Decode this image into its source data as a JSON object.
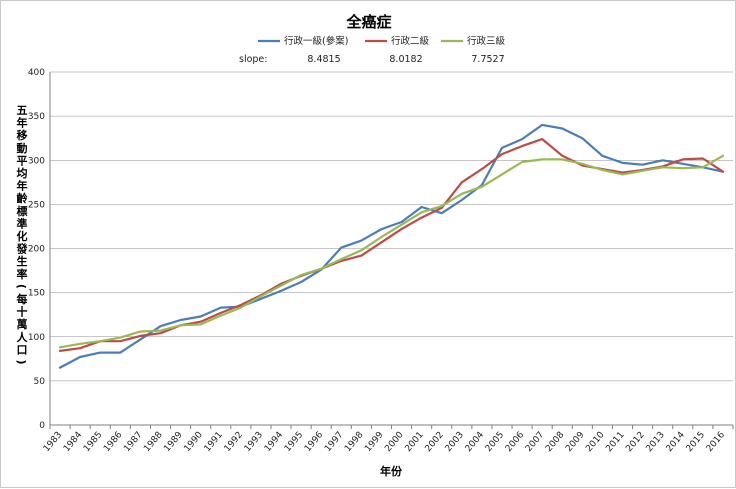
{
  "chart_data": {
    "type": "line",
    "title": "全癌症",
    "xlabel": "年份",
    "ylabel": "五年移動平均年齡標準化發生率(每十萬人口)",
    "ylim": [
      0,
      400
    ],
    "yticks": [
      0,
      50,
      100,
      150,
      200,
      250,
      300,
      350,
      400
    ],
    "grid": true,
    "legend_position": "top",
    "slope_label": "slope:",
    "categories": [
      "1983",
      "1984",
      "1985",
      "1986",
      "1987",
      "1988",
      "1989",
      "1990",
      "1991",
      "1992",
      "1993",
      "1994",
      "1995",
      "1996",
      "1997",
      "1998",
      "1999",
      "2000",
      "2001",
      "2002",
      "2003",
      "2004",
      "2005",
      "2006",
      "2007",
      "2008",
      "2009",
      "2010",
      "2011",
      "2012",
      "2013",
      "2014",
      "2015",
      "2016"
    ],
    "series": [
      {
        "name": "行政一級(參案)",
        "color": "#4a7ebb",
        "slope": "8.4815",
        "values": [
          65,
          77,
          82,
          82,
          97,
          112,
          119,
          123,
          133,
          134,
          143,
          152,
          162,
          176,
          201,
          209,
          222,
          230,
          247,
          240,
          255,
          272,
          314,
          324,
          340,
          336,
          325,
          305,
          297,
          295,
          300,
          296,
          292,
          287
        ]
      },
      {
        "name": "行政二級",
        "color": "#be4b48",
        "slope": "8.0182",
        "values": [
          84,
          87,
          95,
          95,
          101,
          104,
          113,
          117,
          127,
          136,
          147,
          160,
          169,
          177,
          186,
          192,
          207,
          222,
          235,
          246,
          275,
          290,
          307,
          316,
          324,
          305,
          294,
          290,
          286,
          289,
          293,
          301,
          302,
          287
        ]
      },
      {
        "name": "行政三級",
        "color": "#98b954",
        "slope": "7.7527",
        "values": [
          88,
          92,
          95,
          99,
          106,
          107,
          113,
          114,
          124,
          133,
          146,
          158,
          170,
          177,
          188,
          198,
          213,
          227,
          241,
          248,
          262,
          270,
          284,
          298,
          301,
          301,
          296,
          289,
          284,
          288,
          292,
          291,
          292,
          305
        ]
      }
    ]
  }
}
